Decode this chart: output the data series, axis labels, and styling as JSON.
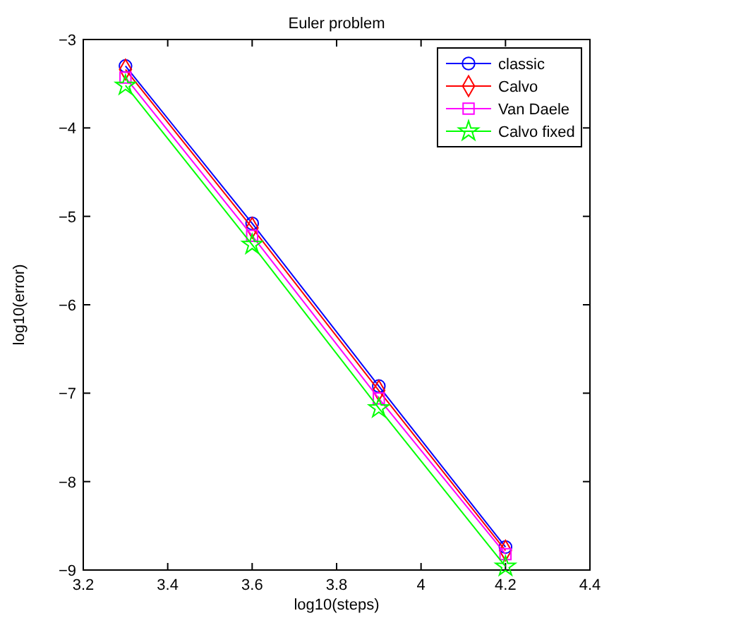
{
  "chart_data": {
    "type": "line",
    "title": "Euler problem",
    "xlabel": "log10(steps)",
    "ylabel": "log10(error)",
    "x": [
      3.3,
      3.6,
      3.9,
      4.2
    ],
    "series": [
      {
        "name": "classic",
        "color": "#0000ff",
        "marker": "circle",
        "values": [
          -3.3,
          -5.08,
          -6.92,
          -8.74
        ]
      },
      {
        "name": "Calvo",
        "color": "#ff0000",
        "marker": "diamond",
        "values": [
          -3.34,
          -5.13,
          -6.97,
          -8.78
        ]
      },
      {
        "name": "Van Daele",
        "color": "#ff00ff",
        "marker": "square",
        "values": [
          -3.43,
          -5.22,
          -7.06,
          -8.82
        ]
      },
      {
        "name": "Calvo fixed",
        "color": "#00ff00",
        "marker": "star",
        "values": [
          -3.52,
          -5.32,
          -7.17,
          -8.96
        ]
      }
    ],
    "xlim": [
      3.2,
      4.4
    ],
    "xticks": [
      3.2,
      3.4,
      3.6,
      3.8,
      4,
      4.2,
      4.4
    ],
    "ylim": [
      -9,
      -3
    ],
    "yticks": [
      -9,
      -8,
      -7,
      -6,
      -5,
      -4,
      -3
    ],
    "grid": false,
    "legend": "top right"
  }
}
